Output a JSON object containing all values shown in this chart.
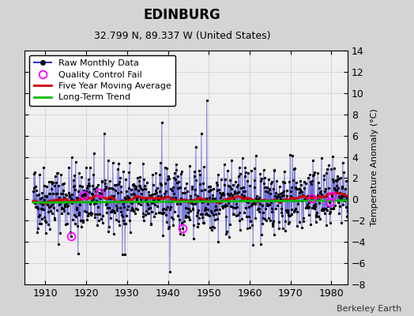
{
  "title": "EDINBURG",
  "subtitle": "32.799 N, 89.337 W (United States)",
  "ylabel": "Temperature Anomaly (°C)",
  "credit": "Berkeley Earth",
  "xlim": [
    1905,
    1984
  ],
  "ylim": [
    -8,
    14
  ],
  "yticks": [
    -8,
    -6,
    -4,
    -2,
    0,
    2,
    4,
    6,
    8,
    10,
    12,
    14
  ],
  "xticks": [
    1910,
    1920,
    1930,
    1940,
    1950,
    1960,
    1970,
    1980
  ],
  "fig_bg_color": "#d4d4d4",
  "plot_bg_color": "#f0f0f0",
  "raw_line_color": "#3333cc",
  "raw_dot_color": "#000000",
  "moving_avg_color": "#cc0000",
  "trend_color": "#00bb00",
  "qc_fail_color": "#ff00ff",
  "grid_color": "#cccccc",
  "seed": 42
}
